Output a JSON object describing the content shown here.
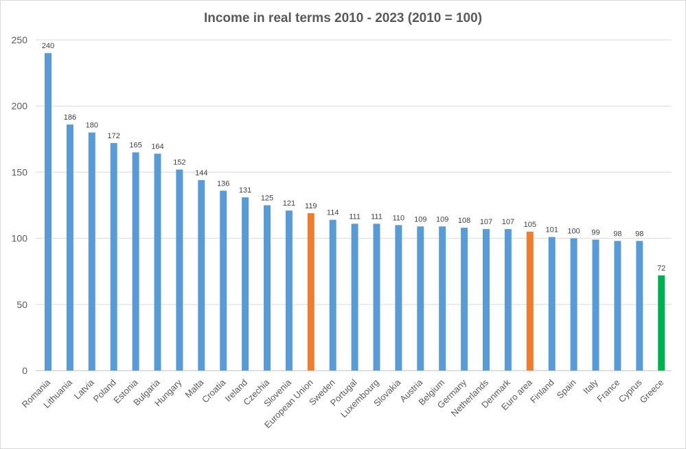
{
  "chart_data": {
    "type": "bar",
    "title": "Income in real terms 2010 - 2023 (2010 = 100)",
    "xlabel": "",
    "ylabel": "",
    "ylim": [
      0,
      250
    ],
    "yticks": [
      0,
      50,
      100,
      150,
      200,
      250
    ],
    "grid": true,
    "legend": "none",
    "categories": [
      "Romania",
      "Lithuania",
      "Latvia",
      "Poland",
      "Estonia",
      "Bulgaria",
      "Hungary",
      "Malta",
      "Croatia",
      "Ireland",
      "Czechia",
      "Slovenia",
      "European Union",
      "Sweden",
      "Portugal",
      "Luxembourg",
      "Slovakia",
      "Austria",
      "Belgium",
      "Germany",
      "Netherlands",
      "Denmark",
      "Euro area",
      "Finland",
      "Spain",
      "Italy",
      "France",
      "Cyprus",
      "Greece"
    ],
    "values": [
      240,
      186,
      180,
      172,
      165,
      164,
      152,
      144,
      136,
      131,
      125,
      121,
      119,
      114,
      111,
      111,
      110,
      109,
      109,
      108,
      107,
      107,
      105,
      101,
      100,
      99,
      98,
      98,
      72
    ],
    "bar_colors": [
      "#5b9bd5",
      "#5b9bd5",
      "#5b9bd5",
      "#5b9bd5",
      "#5b9bd5",
      "#5b9bd5",
      "#5b9bd5",
      "#5b9bd5",
      "#5b9bd5",
      "#5b9bd5",
      "#5b9bd5",
      "#5b9bd5",
      "#ed7d31",
      "#5b9bd5",
      "#5b9bd5",
      "#5b9bd5",
      "#5b9bd5",
      "#5b9bd5",
      "#5b9bd5",
      "#5b9bd5",
      "#5b9bd5",
      "#5b9bd5",
      "#ed7d31",
      "#5b9bd5",
      "#5b9bd5",
      "#5b9bd5",
      "#5b9bd5",
      "#5b9bd5",
      "#00b050"
    ]
  }
}
